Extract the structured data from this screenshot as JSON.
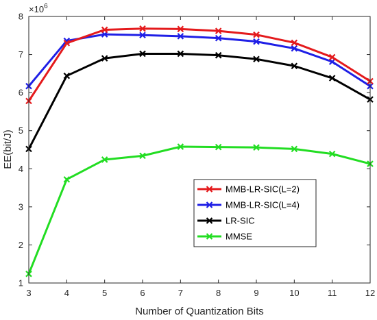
{
  "chart_data": {
    "type": "line",
    "xlabel": "Number of Quantization Bits",
    "ylabel": "EE(bit/J)",
    "multiplier_label": "×10",
    "multiplier_exp": "6",
    "x": [
      3,
      4,
      5,
      6,
      7,
      8,
      9,
      10,
      11,
      12
    ],
    "xlim": [
      3,
      12
    ],
    "ylim": [
      1,
      8
    ],
    "xticks": [
      3,
      4,
      5,
      6,
      7,
      8,
      9,
      10,
      11,
      12
    ],
    "yticks": [
      1,
      2,
      3,
      4,
      5,
      6,
      7,
      8
    ],
    "grid": false,
    "legend_position": "center-right",
    "series": [
      {
        "name": "MMB-LR-SIC(L=2)",
        "color": "#e41a1c",
        "values": [
          5.78,
          7.3,
          7.65,
          7.68,
          7.67,
          7.62,
          7.52,
          7.31,
          6.93,
          6.3
        ]
      },
      {
        "name": "MMB-LR-SIC(L=4)",
        "color": "#1f1fe6",
        "values": [
          6.17,
          7.36,
          7.53,
          7.51,
          7.48,
          7.43,
          7.34,
          7.16,
          6.81,
          6.17
        ]
      },
      {
        "name": "LR-SIC",
        "color": "#000000",
        "values": [
          4.52,
          6.44,
          6.9,
          7.02,
          7.02,
          6.98,
          6.88,
          6.7,
          6.38,
          5.82
        ]
      },
      {
        "name": "MMSE",
        "color": "#22dd22",
        "values": [
          1.24,
          3.72,
          4.24,
          4.34,
          4.58,
          4.57,
          4.56,
          4.52,
          4.39,
          4.13
        ]
      }
    ]
  }
}
